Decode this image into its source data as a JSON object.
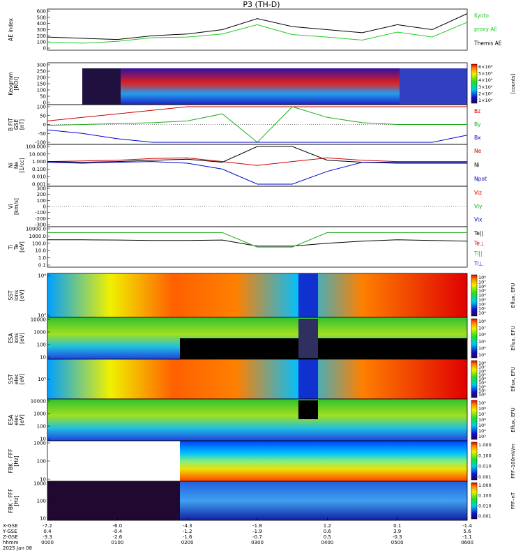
{
  "title": "P3 (TH-D)",
  "date_label": "2025 Jan 08",
  "ephemeris": {
    "row_labels": [
      "X-GSE",
      "Y-GSE",
      "Z-GSE",
      "hhmm"
    ],
    "columns": [
      {
        "values": [
          "-7.2",
          "0.4",
          "-3.3",
          "0000"
        ]
      },
      {
        "values": [
          "-6.0",
          "-0.4",
          "-2.6",
          "0100"
        ]
      },
      {
        "values": [
          "-4.3",
          "-1.2",
          "-1.6",
          "0200"
        ]
      },
      {
        "values": [
          "-1.8",
          "-1.9",
          "-0.7",
          "0300"
        ]
      },
      {
        "values": [
          "1.2",
          "0.6",
          "0.5",
          "0400"
        ]
      },
      {
        "values": [
          "0.1",
          "3.9",
          "-0.3",
          "0500"
        ]
      },
      {
        "values": [
          "-1.4",
          "5.6",
          "-1.1",
          "0600"
        ]
      }
    ]
  },
  "panels": [
    {
      "id": "ae",
      "ylabel": [
        "AE index"
      ],
      "ticks": [
        "600",
        "500",
        "400",
        "300",
        "200",
        "100",
        "0"
      ],
      "right_labels": [
        {
          "text": "Kyoto",
          "color": "#22cc22"
        },
        {
          "text": "proxy AE",
          "color": "#22cc22"
        },
        {
          "text": "Themis AE",
          "color": "#000000"
        }
      ]
    },
    {
      "id": "keogram",
      "ylabel": [
        "Keogram",
        "[ROI]"
      ],
      "ticks": [
        "300",
        "250",
        "200",
        "150",
        "100",
        "50",
        "0"
      ],
      "colorbar_labels": [
        "6×10⁴",
        "5×10⁴",
        "4×10⁴",
        "3×10⁴",
        "2×10⁴",
        "1×10⁴"
      ],
      "colorbar_unit": "[counts]"
    },
    {
      "id": "bfield",
      "ylabel": [
        "B FIT",
        "GSE",
        "[nT]"
      ],
      "ticks": [
        "100",
        "50",
        "0",
        "-50",
        "-100"
      ],
      "right_labels": [
        {
          "text": "Bz",
          "color": "#cc0000"
        },
        {
          "text": "By",
          "color": "#22aa22"
        },
        {
          "text": "Bx",
          "color": "#0000cc"
        }
      ]
    },
    {
      "id": "density",
      "ylabel": [
        "Ni",
        "Ne",
        "[1/cc]"
      ],
      "ticks": [
        "100.000",
        "10.000",
        "1.000",
        "0.100",
        "0.010",
        "0.001"
      ],
      "right_labels": [
        {
          "text": "Ne",
          "color": "#cc0000"
        },
        {
          "text": "Ni",
          "color": "#000000"
        },
        {
          "text": "Npot",
          "color": "#0000cc"
        }
      ]
    },
    {
      "id": "velocity",
      "ylabel": [
        "Vi",
        "[km/s]"
      ],
      "ticks": [
        "300",
        "200",
        "100",
        "0",
        "-100",
        "-200",
        "-300"
      ],
      "right_labels": [
        {
          "text": "Viz",
          "color": "#cc0000"
        },
        {
          "text": "Viy",
          "color": "#22aa22"
        },
        {
          "text": "Vix",
          "color": "#0000cc"
        }
      ]
    },
    {
      "id": "temperature",
      "ylabel": [
        "Ti",
        "Te",
        "[eV]"
      ],
      "ticks": [
        "10000.0",
        "1000.0",
        "100.0",
        "10.0",
        "1.0",
        "0.1"
      ],
      "right_labels": [
        {
          "text": "Te||",
          "color": "#000000"
        },
        {
          "text": "Te⊥",
          "color": "#cc0000"
        },
        {
          "text": "Ti||",
          "color": "#22aa22"
        },
        {
          "text": "Ti⊥",
          "color": "#0000cc"
        }
      ]
    },
    {
      "id": "sst_ion",
      "ylabel": [
        "SST",
        "ions",
        "[eV]"
      ],
      "ticks": [
        "10⁶",
        "10⁵"
      ],
      "colorbar_labels": [
        "10⁸",
        "10⁷",
        "10⁶",
        "10⁵",
        "10⁴",
        "10³",
        "10²",
        "10¹",
        "10⁰"
      ],
      "colorbar_unit": "Eflux, EFU"
    },
    {
      "id": "esa_ion",
      "ylabel": [
        "ESA",
        "ions",
        "[eV]"
      ],
      "ticks": [
        "10000",
        "1000",
        "100",
        "10"
      ],
      "colorbar_labels": [
        "10⁸",
        "10⁷",
        "10⁶",
        "10⁵",
        "10⁴",
        "10³"
      ],
      "colorbar_unit": "Eflux, EFU"
    },
    {
      "id": "sst_elec",
      "ylabel": [
        "SST",
        "elec",
        "[eV]"
      ],
      "ticks": [
        "10⁵"
      ],
      "colorbar_labels": [
        "10⁸",
        "10⁷",
        "10⁶",
        "10⁵",
        "10⁴",
        "10³",
        "10²",
        "10¹",
        "10⁰"
      ],
      "colorbar_unit": "Eflux, EFU"
    },
    {
      "id": "esa_elec",
      "ylabel": [
        "ESA",
        "elec",
        "[eV]"
      ],
      "ticks": [
        "10000",
        "1000",
        "100",
        "10"
      ],
      "colorbar_labels": [
        "10⁹",
        "10⁸",
        "10⁷",
        "10⁶",
        "10⁵",
        "10⁴",
        "10³"
      ],
      "colorbar_unit": "Eflux, EFU"
    },
    {
      "id": "fbk_e",
      "ylabel": [
        "FBK - FFF",
        "[Hz]"
      ],
      "ticks": [
        "1000",
        "100",
        "10"
      ],
      "colorbar_labels": [
        "1.000",
        "0.100",
        "0.010",
        "0.001"
      ],
      "colorbar_unit": "FFF–100mV/m"
    },
    {
      "id": "fbk_b",
      "ylabel": [
        "FBK - FFF",
        "[Hz]"
      ],
      "ticks": [
        "1000",
        "100",
        "10"
      ],
      "colorbar_labels": [
        "1.000",
        "0.100",
        "0.010",
        "0.001"
      ],
      "colorbar_unit": "FFF–nT"
    }
  ],
  "chart_data": {
    "type": "line",
    "title": "P3 (TH-D)",
    "x_hours": [
      0,
      0.5,
      1,
      1.5,
      2,
      2.5,
      3,
      3.5,
      4,
      4.5,
      5,
      5.5,
      6
    ],
    "x_ticks": [
      "0000",
      "0100",
      "0200",
      "0300",
      "0400",
      "0500",
      "0600"
    ],
    "series": [
      {
        "name": "Themis AE",
        "panel": "ae",
        "color": "#000000",
        "values": [
          180,
          160,
          140,
          200,
          230,
          300,
          480,
          350,
          300,
          250,
          380,
          300,
          560
        ]
      },
      {
        "name": "Kyoto proxy AE",
        "panel": "ae",
        "color": "#22cc22",
        "values": [
          100,
          80,
          110,
          170,
          180,
          230,
          380,
          220,
          180,
          130,
          260,
          180,
          420
        ]
      },
      {
        "name": "Bz",
        "panel": "bfield",
        "color": "#cc0000",
        "values": [
          20,
          40,
          60,
          80,
          100,
          100,
          100,
          100,
          100,
          100,
          100,
          100,
          100
        ]
      },
      {
        "name": "By",
        "panel": "bfield",
        "color": "#22aa22",
        "values": [
          -5,
          0,
          5,
          10,
          20,
          60,
          -100,
          100,
          40,
          10,
          0,
          0,
          0
        ]
      },
      {
        "name": "Bx",
        "panel": "bfield",
        "color": "#0000cc",
        "values": [
          -30,
          -50,
          -80,
          -100,
          -100,
          -100,
          -100,
          -100,
          -100,
          -100,
          -100,
          -100,
          -60
        ]
      },
      {
        "name": "Ne",
        "panel": "density",
        "color": "#cc0000",
        "values": [
          1.0,
          1.2,
          1.5,
          2.5,
          3.0,
          1.0,
          0.3,
          1.0,
          3.0,
          1.5,
          1.0,
          1.0,
          1.0
        ]
      },
      {
        "name": "Ni",
        "panel": "density",
        "color": "#000000",
        "values": [
          1.0,
          0.8,
          1.0,
          1.5,
          2.0,
          0.8,
          100,
          100,
          1.5,
          0.8,
          0.6,
          0.6,
          0.6
        ]
      },
      {
        "name": "Npot",
        "panel": "density",
        "color": "#0000cc",
        "values": [
          0.8,
          0.6,
          0.8,
          1.0,
          0.6,
          0.1,
          0.001,
          0.001,
          0.05,
          0.8,
          0.8,
          0.8,
          0.8
        ]
      },
      {
        "name": "Te||",
        "panel": "temperature",
        "color": "#000000",
        "values": [
          300,
          300,
          280,
          250,
          250,
          280,
          40,
          40,
          100,
          200,
          300,
          250,
          200
        ]
      },
      {
        "name": "Ti||",
        "panel": "temperature",
        "color": "#22aa22",
        "values": [
          3000,
          3000,
          3000,
          3000,
          3000,
          3000,
          30,
          30,
          3000,
          3000,
          3000,
          3000,
          3000
        ]
      }
    ]
  }
}
